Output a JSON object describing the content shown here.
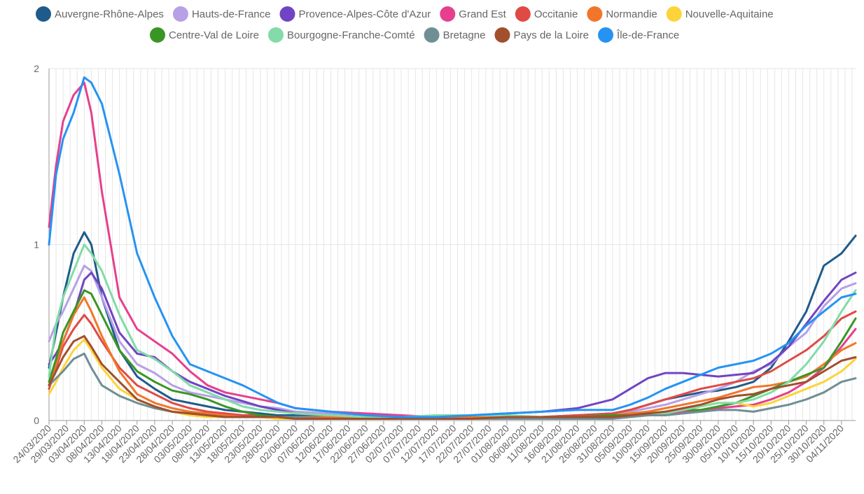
{
  "chart_data": {
    "type": "line",
    "title": "",
    "xlabel": "",
    "ylabel": "",
    "ylim": [
      0,
      2
    ],
    "yticks": [
      "0",
      "1",
      "2"
    ],
    "xlim": [
      "24/03/2020",
      "08/11/2020"
    ],
    "x_tick_labels": [
      "24/03/2020",
      "29/03/2020",
      "03/04/2020",
      "08/04/2020",
      "13/04/2020",
      "18/04/2020",
      "23/04/2020",
      "28/04/2020",
      "03/05/2020",
      "08/05/2020",
      "13/05/2020",
      "18/05/2020",
      "23/05/2020",
      "28/05/2020",
      "02/06/2020",
      "07/06/2020",
      "12/06/2020",
      "17/06/2020",
      "22/06/2020",
      "27/06/2020",
      "02/07/2020",
      "07/07/2020",
      "12/07/2020",
      "17/07/2020",
      "22/07/2020",
      "27/07/2020",
      "01/08/2020",
      "06/08/2020",
      "11/08/2020",
      "16/08/2020",
      "21/08/2020",
      "26/08/2020",
      "31/08/2020",
      "05/09/2020",
      "10/09/2020",
      "15/09/2020",
      "20/09/2020",
      "25/09/2020",
      "30/09/2020",
      "05/10/2020",
      "10/10/2020",
      "15/10/2020",
      "20/10/2020",
      "25/10/2020",
      "30/10/2020",
      "04/11/2020"
    ],
    "grid": true,
    "legend_position": "top",
    "x": [
      "24/03/2020",
      "26/03/2020",
      "28/03/2020",
      "31/03/2020",
      "03/04/2020",
      "05/04/2020",
      "08/04/2020",
      "13/04/2020",
      "18/04/2020",
      "23/04/2020",
      "28/04/2020",
      "03/05/2020",
      "08/05/2020",
      "13/05/2020",
      "18/05/2020",
      "23/05/2020",
      "28/05/2020",
      "02/06/2020",
      "12/06/2020",
      "22/06/2020",
      "02/07/2020",
      "12/07/2020",
      "22/07/2020",
      "01/08/2020",
      "11/08/2020",
      "21/08/2020",
      "31/08/2020",
      "05/09/2020",
      "10/09/2020",
      "15/09/2020",
      "20/09/2020",
      "25/09/2020",
      "30/09/2020",
      "05/10/2020",
      "10/10/2020",
      "15/10/2020",
      "20/10/2020",
      "25/10/2020",
      "30/10/2020",
      "04/11/2020",
      "08/11/2020"
    ],
    "series": [
      {
        "name": "Auvergne-Rhône-Alpes",
        "color": "#1f5b8a",
        "values": [
          0.3,
          0.5,
          0.7,
          0.95,
          1.07,
          1.0,
          0.7,
          0.4,
          0.25,
          0.18,
          0.12,
          0.1,
          0.08,
          0.06,
          0.05,
          0.04,
          0.03,
          0.03,
          0.02,
          0.02,
          0.02,
          0.02,
          0.02,
          0.02,
          0.02,
          0.03,
          0.04,
          0.06,
          0.09,
          0.12,
          0.14,
          0.16,
          0.17,
          0.19,
          0.22,
          0.3,
          0.45,
          0.62,
          0.88,
          0.95,
          1.05
        ]
      },
      {
        "name": "Hauts-de-France",
        "color": "#b7a0e6",
        "values": [
          0.45,
          0.55,
          0.62,
          0.75,
          0.88,
          0.85,
          0.7,
          0.45,
          0.32,
          0.27,
          0.2,
          0.16,
          0.14,
          0.12,
          0.1,
          0.08,
          0.07,
          0.05,
          0.04,
          0.03,
          0.02,
          0.02,
          0.02,
          0.02,
          0.02,
          0.03,
          0.03,
          0.05,
          0.07,
          0.09,
          0.12,
          0.15,
          0.18,
          0.22,
          0.28,
          0.32,
          0.42,
          0.5,
          0.65,
          0.75,
          0.78
        ]
      },
      {
        "name": "Provence-Alpes-Côte d'Azur",
        "color": "#7044c4",
        "values": [
          0.32,
          0.38,
          0.45,
          0.6,
          0.8,
          0.84,
          0.75,
          0.5,
          0.38,
          0.36,
          0.28,
          0.22,
          0.18,
          0.14,
          0.11,
          0.08,
          0.06,
          0.04,
          0.03,
          0.02,
          0.02,
          0.02,
          0.03,
          0.04,
          0.05,
          0.07,
          0.12,
          0.18,
          0.24,
          0.27,
          0.27,
          0.26,
          0.25,
          0.26,
          0.27,
          0.33,
          0.42,
          0.55,
          0.68,
          0.8,
          0.84
        ]
      },
      {
        "name": "Grand Est",
        "color": "#e63f8e",
        "values": [
          1.1,
          1.45,
          1.7,
          1.85,
          1.92,
          1.75,
          1.3,
          0.7,
          0.52,
          0.45,
          0.38,
          0.28,
          0.2,
          0.16,
          0.14,
          0.12,
          0.1,
          0.07,
          0.05,
          0.04,
          0.03,
          0.02,
          0.02,
          0.02,
          0.02,
          0.02,
          0.02,
          0.03,
          0.03,
          0.04,
          0.05,
          0.06,
          0.07,
          0.08,
          0.09,
          0.12,
          0.16,
          0.22,
          0.3,
          0.42,
          0.52
        ]
      },
      {
        "name": "Occitanie",
        "color": "#e04a45",
        "values": [
          0.18,
          0.3,
          0.42,
          0.52,
          0.6,
          0.55,
          0.45,
          0.3,
          0.2,
          0.15,
          0.1,
          0.07,
          0.05,
          0.04,
          0.03,
          0.03,
          0.02,
          0.02,
          0.02,
          0.02,
          0.02,
          0.02,
          0.02,
          0.02,
          0.02,
          0.03,
          0.04,
          0.06,
          0.09,
          0.12,
          0.15,
          0.18,
          0.2,
          0.22,
          0.24,
          0.28,
          0.34,
          0.4,
          0.48,
          0.58,
          0.62
        ]
      },
      {
        "name": "Normandie",
        "color": "#f2762a",
        "values": [
          0.2,
          0.32,
          0.45,
          0.6,
          0.7,
          0.62,
          0.48,
          0.28,
          0.15,
          0.1,
          0.07,
          0.05,
          0.04,
          0.03,
          0.02,
          0.02,
          0.02,
          0.02,
          0.02,
          0.02,
          0.02,
          0.02,
          0.02,
          0.02,
          0.02,
          0.02,
          0.03,
          0.04,
          0.05,
          0.07,
          0.09,
          0.11,
          0.13,
          0.16,
          0.19,
          0.2,
          0.22,
          0.25,
          0.32,
          0.4,
          0.44
        ]
      },
      {
        "name": "Nouvelle-Aquitaine",
        "color": "#fcd43a",
        "values": [
          0.15,
          0.22,
          0.3,
          0.4,
          0.46,
          0.4,
          0.3,
          0.18,
          0.12,
          0.08,
          0.05,
          0.03,
          0.02,
          0.02,
          0.02,
          0.02,
          0.01,
          0.01,
          0.01,
          0.01,
          0.01,
          0.01,
          0.01,
          0.02,
          0.02,
          0.02,
          0.02,
          0.03,
          0.04,
          0.05,
          0.06,
          0.08,
          0.1,
          0.1,
          0.08,
          0.1,
          0.14,
          0.18,
          0.22,
          0.28,
          0.35
        ]
      },
      {
        "name": "Centre-Val de Loire",
        "color": "#3a9624",
        "values": [
          0.22,
          0.35,
          0.5,
          0.62,
          0.74,
          0.72,
          0.6,
          0.4,
          0.28,
          0.22,
          0.17,
          0.15,
          0.12,
          0.08,
          0.05,
          0.03,
          0.02,
          0.01,
          0.01,
          0.01,
          0.01,
          0.01,
          0.01,
          0.02,
          0.02,
          0.02,
          0.03,
          0.03,
          0.04,
          0.05,
          0.06,
          0.06,
          0.08,
          0.1,
          0.14,
          0.18,
          0.22,
          0.26,
          0.3,
          0.45,
          0.58
        ]
      },
      {
        "name": "Bourgogne-Franche-Comté",
        "color": "#82dba8",
        "values": [
          0.25,
          0.55,
          0.7,
          0.85,
          1.0,
          0.95,
          0.85,
          0.6,
          0.4,
          0.35,
          0.28,
          0.2,
          0.16,
          0.12,
          0.08,
          0.06,
          0.05,
          0.04,
          0.03,
          0.02,
          0.02,
          0.03,
          0.03,
          0.03,
          0.02,
          0.02,
          0.02,
          0.02,
          0.03,
          0.04,
          0.06,
          0.08,
          0.1,
          0.1,
          0.12,
          0.16,
          0.22,
          0.32,
          0.45,
          0.62,
          0.74
        ]
      },
      {
        "name": "Bretagne",
        "color": "#6f8f95",
        "values": [
          0.2,
          0.24,
          0.28,
          0.35,
          0.38,
          0.3,
          0.2,
          0.14,
          0.1,
          0.07,
          0.05,
          0.04,
          0.03,
          0.02,
          0.02,
          0.02,
          0.02,
          0.02,
          0.01,
          0.01,
          0.01,
          0.01,
          0.01,
          0.01,
          0.01,
          0.01,
          0.01,
          0.02,
          0.03,
          0.03,
          0.04,
          0.05,
          0.06,
          0.06,
          0.05,
          0.07,
          0.09,
          0.12,
          0.16,
          0.22,
          0.24
        ]
      },
      {
        "name": "Pays de la Loire",
        "color": "#a14f2d",
        "values": [
          0.2,
          0.28,
          0.36,
          0.45,
          0.48,
          0.42,
          0.32,
          0.22,
          0.12,
          0.08,
          0.05,
          0.04,
          0.03,
          0.02,
          0.02,
          0.02,
          0.02,
          0.01,
          0.01,
          0.01,
          0.01,
          0.01,
          0.01,
          0.02,
          0.02,
          0.02,
          0.02,
          0.03,
          0.04,
          0.05,
          0.07,
          0.09,
          0.12,
          0.14,
          0.15,
          0.18,
          0.2,
          0.22,
          0.28,
          0.34,
          0.36
        ]
      },
      {
        "name": "Île-de-France",
        "color": "#2593f3",
        "values": [
          1.0,
          1.4,
          1.6,
          1.75,
          1.95,
          1.92,
          1.8,
          1.4,
          0.95,
          0.7,
          0.48,
          0.32,
          0.28,
          0.24,
          0.2,
          0.15,
          0.1,
          0.07,
          0.05,
          0.03,
          0.02,
          0.02,
          0.03,
          0.04,
          0.05,
          0.06,
          0.06,
          0.09,
          0.13,
          0.18,
          0.22,
          0.26,
          0.3,
          0.32,
          0.34,
          0.38,
          0.44,
          0.54,
          0.62,
          0.7,
          0.72
        ]
      }
    ]
  }
}
